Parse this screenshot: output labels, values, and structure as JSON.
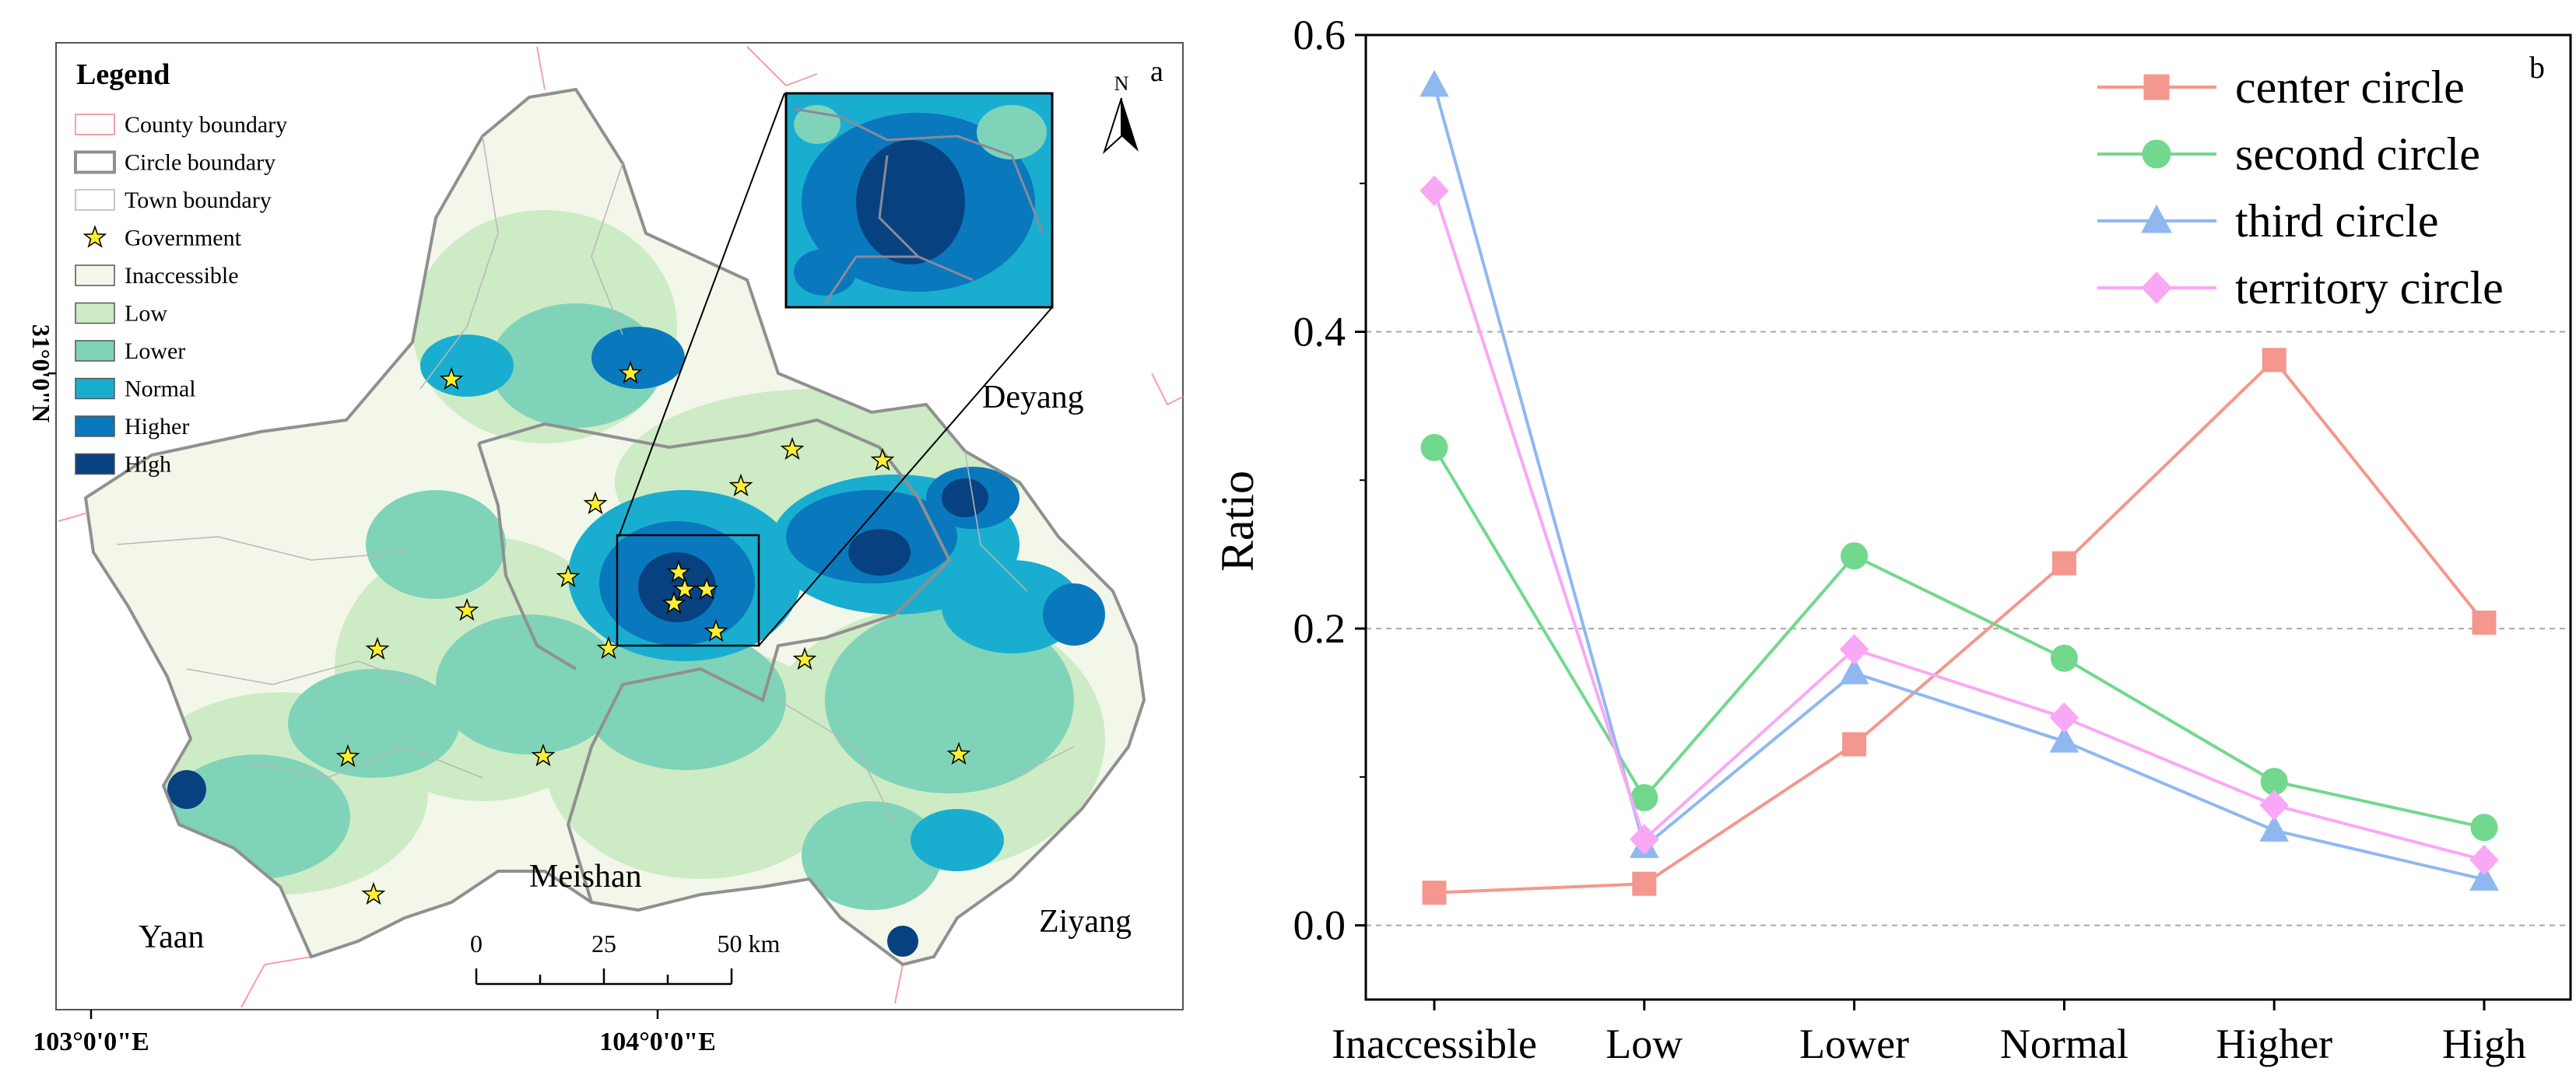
{
  "panel_a": {
    "label": "a",
    "north_label": "N",
    "legend": {
      "title": "Legend",
      "items": [
        {
          "label": "County boundary",
          "kind": "line",
          "color": "#f4a0a8"
        },
        {
          "label": "Circle boundary",
          "kind": "line",
          "color": "#909090"
        },
        {
          "label": "Town boundary",
          "kind": "line",
          "color": "#c8c8c8"
        },
        {
          "label": "Government",
          "kind": "star",
          "color": "#ffee33"
        },
        {
          "label": "Inaccessible",
          "kind": "fill",
          "color": "#f2f7ea"
        },
        {
          "label": "Low",
          "kind": "fill",
          "color": "#cdebc5"
        },
        {
          "label": "Lower",
          "kind": "fill",
          "color": "#7fd3b8"
        },
        {
          "label": "Normal",
          "kind": "fill",
          "color": "#19aed0"
        },
        {
          "label": "Higher",
          "kind": "fill",
          "color": "#0a78bd"
        },
        {
          "label": "High",
          "kind": "fill",
          "color": "#08417f"
        }
      ]
    },
    "city_labels": [
      "Deyang",
      "Meishan",
      "Yaan",
      "Ziyang"
    ],
    "lat_label": "31°0'0\"N",
    "lon_labels": [
      "103°0'0\"E",
      "104°0'0\"E"
    ],
    "scale_bar": {
      "ticks": [
        "0",
        "25",
        "50 km"
      ]
    }
  },
  "chart_data": {
    "type": "line",
    "panel_label": "b",
    "title": "",
    "xlabel": "",
    "ylabel": "Ratio",
    "categories": [
      "Inaccessible",
      "Low",
      "Lower",
      "Normal",
      "Higher",
      "High"
    ],
    "ylim": [
      -0.05,
      0.6
    ],
    "yticks": [
      "0.0",
      "0.2",
      "0.4",
      "0.6"
    ],
    "grid": "horizontal dashed at 0.0, 0.2, 0.4",
    "legend_position": "top-right",
    "series": [
      {
        "name": "center circle",
        "color": "#f4978e",
        "marker": "square",
        "values": [
          0.022,
          0.028,
          0.122,
          0.244,
          0.381,
          0.204
        ]
      },
      {
        "name": "second circle",
        "color": "#72d88e",
        "marker": "circle",
        "values": [
          0.322,
          0.086,
          0.249,
          0.18,
          0.097,
          0.066
        ]
      },
      {
        "name": "third circle",
        "color": "#8fb8f0",
        "marker": "triangle",
        "values": [
          0.566,
          0.053,
          0.17,
          0.124,
          0.064,
          0.031
        ]
      },
      {
        "name": "territory circle",
        "color": "#f9a8f5",
        "marker": "diamond",
        "values": [
          0.495,
          0.058,
          0.186,
          0.14,
          0.081,
          0.044
        ]
      }
    ]
  }
}
